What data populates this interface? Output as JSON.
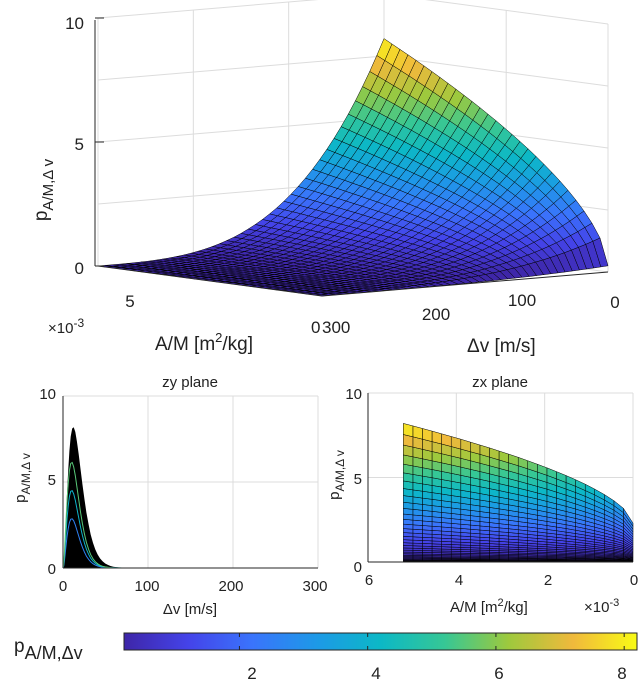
{
  "chart_data": [
    {
      "type": "surface",
      "zlabel": "p",
      "zlabel_sub": "A/M,Δ v",
      "xlabel": "A/M [m",
      "xlabel_sup": "2",
      "xlabel_end": "/kg]",
      "ylabel": "Δv [m/s]",
      "z_ticks": [
        "0",
        "5",
        "10"
      ],
      "am_ticks": [
        "5",
        "0"
      ],
      "dv_ticks": [
        "300",
        "200",
        "100",
        "0"
      ],
      "exponent_base": "×10",
      "exponent_power": "-3",
      "zlim": [
        0,
        10
      ],
      "dv_range": [
        0,
        300
      ],
      "am_range": [
        0,
        0.0055
      ],
      "peak_value": 8.2
    },
    {
      "type": "surface",
      "title": "zy plane",
      "ylabel": "p",
      "ylabel_sub": "A/M,Δ v",
      "xlabel": "Δv [m/s]",
      "x_ticks": [
        "0",
        "100",
        "200",
        "300"
      ],
      "y_ticks": [
        "0",
        "5",
        "10"
      ],
      "xlim": [
        0,
        300
      ],
      "ylim": [
        0,
        10
      ],
      "peak_dv": 12,
      "peak_value": 8.2
    },
    {
      "type": "surface",
      "title": "zx plane",
      "ylabel": "p",
      "ylabel_sub": "A/M,Δ v",
      "xlabel": "A/M [m",
      "xlabel_sup": "2",
      "xlabel_end": "/kg]",
      "x_ticks": [
        "6",
        "4",
        "2",
        "0"
      ],
      "y_ticks": [
        "0",
        "5",
        "10"
      ],
      "exponent_base": "×10",
      "exponent_power": "-3",
      "xlim": [
        6,
        0
      ],
      "ylim": [
        0,
        10
      ],
      "am_max": 5.2,
      "value_at_max_am": 8.2,
      "value_at_zero_am": 2.3
    }
  ],
  "colorbar": {
    "label": "p",
    "label_sub": "A/M,Δv",
    "ticks": [
      "2",
      "4",
      "6",
      "8"
    ],
    "tick_values": [
      2,
      4,
      6,
      8
    ],
    "range": [
      0.2,
      8.2
    ],
    "colormap": "parula"
  },
  "colors": {
    "axis": "#262626",
    "grid": "#dcdcdc",
    "mesh": "#000000"
  }
}
